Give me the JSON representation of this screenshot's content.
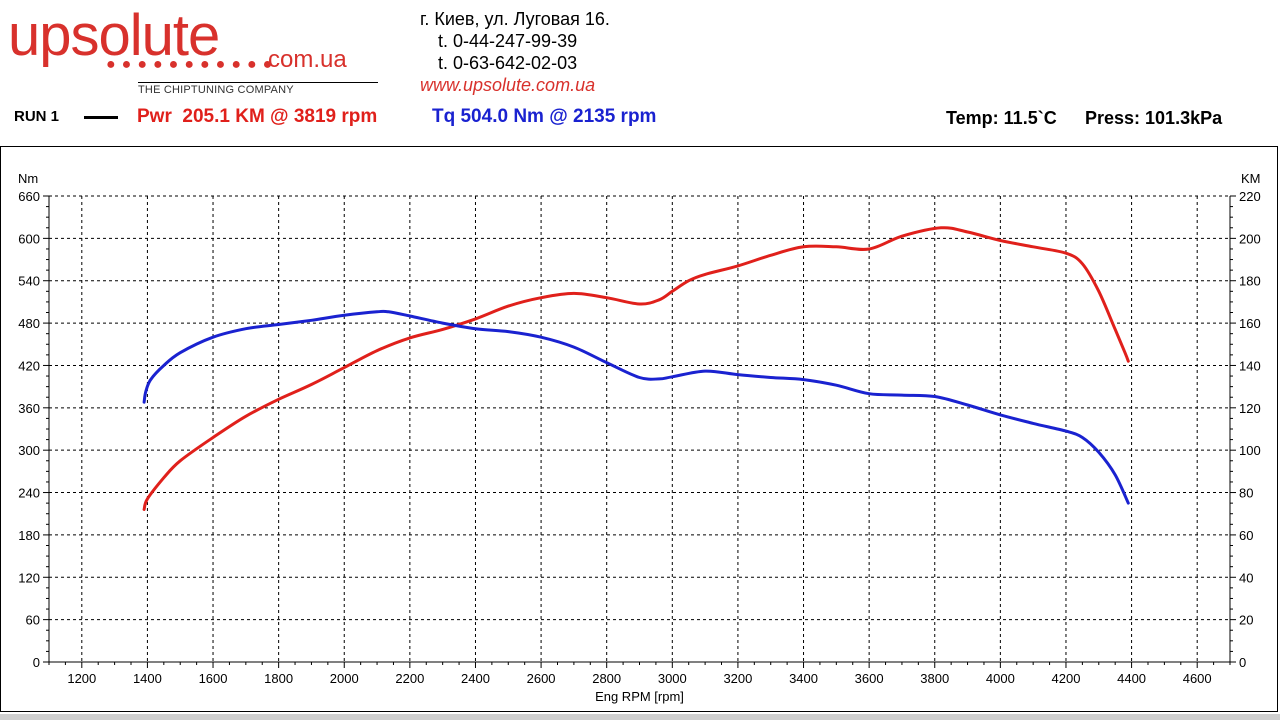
{
  "header": {
    "logo_main": "upsolute",
    "logo_tld": "com.ua",
    "logo_dots": "●●●●●●●●●●●",
    "logo_tagline": "THE CHIPTUNING COMPANY",
    "address": "г. Киев, ул. Луговая 16.",
    "phone1": "t. 0-44-247-99-39",
    "phone2": "t. 0-63-642-02-03",
    "website": "www.upsolute.com.ua"
  },
  "summary": {
    "run_label": "RUN 1",
    "power_text": "Pwr  205.1 KM @ 3819 rpm",
    "torque_text": "Tq 504.0 Nm @ 2135 rpm",
    "temp_text": "Temp: 11.5`C",
    "press_text": "Press: 101.3kPa"
  },
  "colors": {
    "power": "#e0201b",
    "torque": "#1a22d0",
    "logo": "#d8312c"
  },
  "chart_data": {
    "type": "line",
    "title": "",
    "xlabel": "Eng RPM [rpm]",
    "ylabel_left": "Nm",
    "ylabel_right": "KM",
    "xlim": [
      1100,
      4700
    ],
    "ylim_left": [
      0,
      660
    ],
    "ylim_right": [
      0,
      220
    ],
    "x_ticks": [
      1200,
      1400,
      1600,
      1800,
      2000,
      2200,
      2400,
      2600,
      2800,
      3000,
      3200,
      3400,
      3600,
      3800,
      4000,
      4200,
      4400,
      4600
    ],
    "y_ticks_left": [
      0,
      60,
      120,
      180,
      240,
      300,
      360,
      420,
      480,
      540,
      600,
      660
    ],
    "y_ticks_right": [
      0,
      20,
      40,
      60,
      80,
      100,
      120,
      140,
      160,
      180,
      200,
      220
    ],
    "grid": true,
    "series": [
      {
        "name": "Pwr",
        "axis": "right",
        "color": "#e0201b",
        "x": [
          1390,
          1400,
          1450,
          1500,
          1600,
          1700,
          1800,
          1900,
          2000,
          2100,
          2200,
          2300,
          2400,
          2500,
          2600,
          2700,
          2800,
          2900,
          2960,
          3000,
          3050,
          3100,
          3200,
          3300,
          3400,
          3500,
          3600,
          3700,
          3819,
          3900,
          4000,
          4100,
          4200,
          4250,
          4300,
          4350,
          4380,
          4390
        ],
        "y": [
          72,
          77,
          87,
          95,
          106,
          116,
          124,
          131,
          139,
          147,
          153,
          157,
          162,
          168,
          172,
          174,
          172,
          169,
          171,
          175,
          180,
          183,
          187,
          192,
          196,
          196,
          195,
          201,
          205,
          203,
          199,
          196,
          193,
          188,
          175,
          157,
          146,
          142
        ]
      },
      {
        "name": "Tq",
        "axis": "left",
        "color": "#1a22d0",
        "x": [
          1390,
          1395,
          1410,
          1450,
          1500,
          1600,
          1700,
          1800,
          1900,
          2000,
          2100,
          2135,
          2200,
          2300,
          2400,
          2500,
          2600,
          2700,
          2800,
          2900,
          2960,
          3000,
          3100,
          3200,
          3300,
          3400,
          3500,
          3600,
          3700,
          3800,
          3900,
          4000,
          4100,
          4200,
          4250,
          4300,
          4350,
          4390
        ],
        "y": [
          368,
          383,
          400,
          420,
          438,
          460,
          472,
          478,
          484,
          491,
          496,
          496,
          490,
          480,
          472,
          468,
          460,
          446,
          424,
          403,
          401,
          404,
          412,
          407,
          403,
          400,
          392,
          380,
          378,
          376,
          364,
          350,
          338,
          327,
          318,
          297,
          265,
          225
        ]
      }
    ]
  }
}
